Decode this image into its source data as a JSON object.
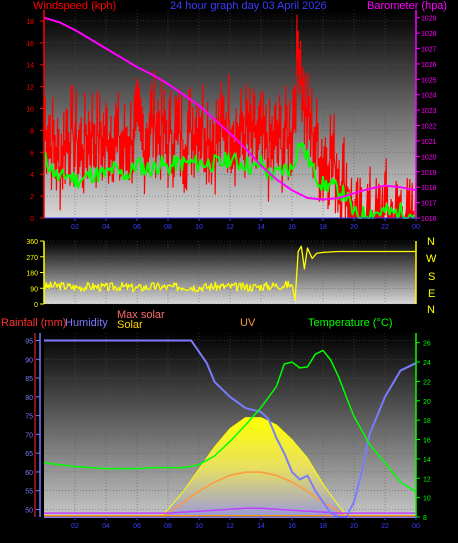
{
  "header": {
    "left_title": "Windspeed (kph)",
    "center_title": "24 hour graph day   03 April 2026",
    "right_title": "Barometer (hpa)"
  },
  "wind_panel": {
    "y_ticks": [
      "0",
      "2",
      "4",
      "6",
      "8",
      "10",
      "12",
      "14",
      "16",
      "18"
    ],
    "baro_ticks": [
      "1016",
      "1017",
      "1018",
      "1019",
      "1020",
      "1021",
      "1022",
      "1023",
      "1024",
      "1025",
      "1026",
      "1027",
      "1028",
      "1029"
    ],
    "x_ticks": [
      "02",
      "04",
      "06",
      "08",
      "10",
      "12",
      "14",
      "16",
      "18",
      "20",
      "22",
      "00"
    ]
  },
  "direction_panel": {
    "y_ticks": [
      "0",
      "90",
      "180",
      "270",
      "360"
    ],
    "compass": [
      "N",
      "W",
      "S",
      "E",
      "N"
    ]
  },
  "lower_panel": {
    "labels": {
      "rainfall": "Rainfall (mm)",
      "humidity": "Humidity",
      "max_solar": "Max solar",
      "solar": "Solar",
      "uv": "UV",
      "temperature": "Temperature (°C)"
    },
    "humidity_ticks": [
      "50",
      "55",
      "60",
      "65",
      "70",
      "75",
      "80",
      "85",
      "90",
      "95"
    ],
    "temp_ticks": [
      "8",
      "10",
      "12",
      "14",
      "16",
      "18",
      "20",
      "22",
      "24",
      "26"
    ],
    "x_ticks": [
      "02",
      "04",
      "06",
      "08",
      "10",
      "12",
      "14",
      "16",
      "18",
      "20",
      "22",
      "00"
    ]
  },
  "colors": {
    "wind_speed": "#ff0000",
    "wind_avg": "#00ff00",
    "barometer": "#ff00ff",
    "direction": "#ffff00",
    "humidity": "#7b7bff",
    "solar": "#ffff00",
    "max_solar": "#ff9a3c",
    "uv": "#c040ff",
    "temperature": "#00ff00",
    "rainfall": "#ff9a00"
  },
  "chart_data": [
    {
      "type": "line",
      "title": "24 hour graph day   03 April 2026",
      "x_range_hours": [
        0,
        24
      ],
      "ylim_left": [
        0,
        19
      ],
      "ylim_right": [
        1016,
        1029.5
      ],
      "ylabel_left": "Windspeed (kph)",
      "ylabel_right": "Barometer (hpa)",
      "series": [
        {
          "name": "Windspeed (kph)",
          "hours": [
            0,
            0.5,
            1,
            1.5,
            2,
            2.5,
            3,
            3.5,
            4,
            4.5,
            5,
            5.5,
            6,
            6.5,
            7,
            7.5,
            8,
            8.5,
            9,
            9.5,
            10,
            10.5,
            11,
            11.5,
            12,
            12.5,
            13,
            13.5,
            14,
            14.5,
            15,
            15.5,
            16,
            16.2,
            16.5,
            16.7,
            17,
            17.5,
            18,
            18.5,
            19,
            19.5,
            20,
            20.5,
            21,
            21.5,
            22,
            22.5,
            23,
            23.5,
            24
          ],
          "values": [
            11,
            9,
            7,
            10,
            9,
            8,
            10,
            9,
            9,
            10,
            8,
            9,
            10,
            9,
            11,
            10,
            9,
            10,
            9,
            10,
            11,
            10,
            9,
            10,
            11,
            9,
            10,
            9,
            9,
            8,
            9,
            9,
            10,
            14,
            18.5,
            13,
            11,
            9,
            7,
            8,
            6,
            5,
            1,
            1,
            2,
            1,
            3,
            1,
            2,
            1,
            1
          ]
        },
        {
          "name": "Windspeed average (kph)",
          "hours": [
            0,
            0.5,
            1,
            1.5,
            2,
            2.5,
            3,
            3.5,
            4,
            4.5,
            5,
            5.5,
            6,
            6.5,
            7,
            7.5,
            8,
            8.5,
            9,
            9.5,
            10,
            10.5,
            11,
            11.5,
            12,
            12.5,
            13,
            13.5,
            14,
            14.5,
            15,
            15.5,
            16,
            16.5,
            17,
            17.5,
            18,
            18.5,
            19,
            19.5,
            20,
            20.5,
            21,
            21.5,
            22,
            22.5,
            23,
            23.5,
            24
          ],
          "values": [
            5.5,
            4.5,
            3.5,
            4,
            3.5,
            3.5,
            4,
            4,
            4,
            4.5,
            4,
            4,
            5,
            4.5,
            4.5,
            5,
            4.5,
            5,
            5,
            5,
            5,
            5,
            5,
            5,
            5.5,
            5,
            5,
            4.5,
            5,
            4,
            4,
            4.5,
            4.5,
            7,
            5.5,
            4,
            3,
            3,
            2.5,
            2,
            0.3,
            0.3,
            0.5,
            0.5,
            0.6,
            0.4,
            0.6,
            0.4,
            0.3
          ]
        },
        {
          "name": "Barometer (hpa)",
          "axis": "right",
          "hours": [
            0,
            1,
            2,
            3,
            4,
            5,
            6,
            7,
            8,
            9,
            10,
            11,
            12,
            13,
            14,
            15,
            16,
            17,
            18,
            19,
            20,
            21,
            22,
            23,
            24
          ],
          "values": [
            1029,
            1028.7,
            1028.2,
            1027.6,
            1027,
            1026.4,
            1025.8,
            1025.3,
            1024.7,
            1024,
            1023.3,
            1022.4,
            1021.5,
            1020.5,
            1019.4,
            1018.5,
            1017.8,
            1017.3,
            1017.2,
            1017.3,
            1017.6,
            1017.9,
            1018.1,
            1018.0,
            1017.8
          ]
        }
      ]
    },
    {
      "type": "line",
      "x_range_hours": [
        0,
        24
      ],
      "ylim": [
        0,
        360
      ],
      "series": [
        {
          "name": "Wind direction",
          "hours": [
            0,
            1,
            2,
            3,
            4,
            5,
            6,
            7,
            8,
            9,
            10,
            11,
            12,
            13,
            14,
            15,
            16,
            16.2,
            16.4,
            16.6,
            16.8,
            17,
            17.3,
            17.6,
            18,
            19,
            20,
            21,
            22,
            23,
            24
          ],
          "values": [
            100,
            105,
            95,
            100,
            95,
            100,
            90,
            100,
            95,
            100,
            95,
            100,
            100,
            95,
            100,
            105,
            110,
            20,
            300,
            330,
            200,
            320,
            260,
            290,
            295,
            300,
            300,
            300,
            300,
            300,
            300
          ]
        }
      ]
    },
    {
      "type": "line",
      "x_range_hours": [
        0,
        24
      ],
      "ylim_left": [
        48,
        97
      ],
      "ylim_right": [
        8,
        27
      ],
      "series": [
        {
          "name": "Humidity",
          "axis": "left",
          "hours": [
            0,
            1,
            2,
            3,
            4,
            5,
            6,
            7,
            8,
            9,
            9.5,
            10,
            10.5,
            11,
            12,
            13,
            14,
            14.5,
            15,
            15.5,
            16,
            16.5,
            17,
            17.5,
            18,
            18.5,
            19,
            19.5,
            20,
            20.5,
            21,
            22,
            23,
            24
          ],
          "values": [
            95,
            95,
            95,
            95,
            95,
            95,
            95,
            95,
            95,
            95,
            95,
            92,
            89,
            84,
            80,
            77,
            76,
            74,
            69,
            65,
            60,
            58,
            59,
            55,
            52,
            49,
            48,
            48,
            52,
            60,
            70,
            80,
            87,
            89
          ]
        },
        {
          "name": "Temperature (°C)",
          "axis": "right",
          "hours": [
            0,
            1,
            2,
            3,
            4,
            5,
            6,
            7,
            8,
            9,
            10,
            11,
            12,
            13,
            14,
            15,
            15.5,
            16,
            16.5,
            17,
            17.5,
            18,
            18.5,
            19,
            19.5,
            20,
            21,
            22,
            23,
            24
          ],
          "values": [
            13.6,
            13.4,
            13.2,
            13.1,
            13.0,
            13.0,
            13.0,
            13.1,
            13.1,
            13.1,
            13.4,
            14.3,
            15.8,
            17.5,
            19.3,
            21.5,
            23.8,
            24,
            23.4,
            23.5,
            24.8,
            25.2,
            24.2,
            22.5,
            20.4,
            18.4,
            15.5,
            13.6,
            11.6,
            10.6
          ]
        },
        {
          "name": "UV",
          "axis": "right",
          "hours": [
            0,
            8,
            9,
            10,
            11,
            12,
            13,
            14,
            15,
            16,
            17,
            18,
            19,
            24
          ],
          "values": [
            8.4,
            8.4,
            8.5,
            8.6,
            8.7,
            8.8,
            8.9,
            8.9,
            8.8,
            8.7,
            8.6,
            8.5,
            8.4,
            8.4
          ]
        }
      ],
      "solar": {
        "hours": [
          7.5,
          8,
          9,
          10,
          11,
          12,
          13,
          14,
          15,
          16,
          17,
          18,
          19,
          19.6
        ],
        "values": [
          0,
          2,
          7,
          13,
          19,
          24,
          27,
          27,
          25,
          21,
          16,
          9,
          3,
          0
        ]
      },
      "max_solar": {
        "hours": [
          7.5,
          8,
          9,
          10,
          11,
          12,
          13,
          14,
          15,
          16,
          17,
          18,
          19,
          19.6
        ],
        "values": [
          0,
          1,
          4,
          7,
          9.5,
          11.3,
          12.2,
          12.2,
          11.3,
          9.5,
          7,
          4,
          1.5,
          0
        ]
      }
    }
  ]
}
